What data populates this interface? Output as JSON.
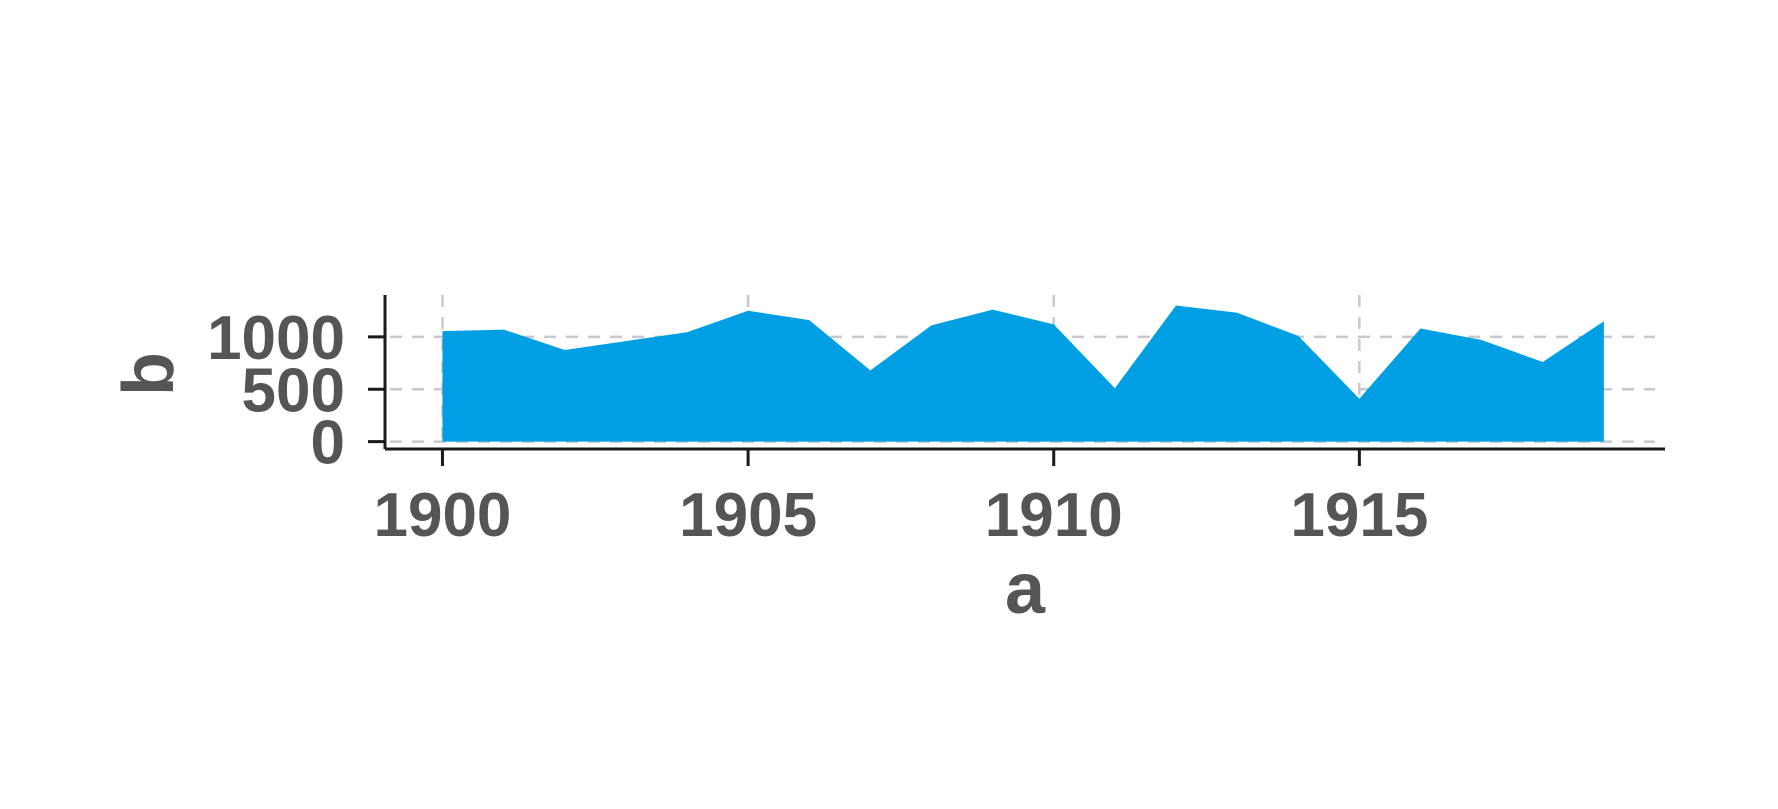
{
  "chart_data": {
    "type": "area",
    "xlabel": "a",
    "ylabel": "b",
    "x": [
      1900,
      1901,
      1902,
      1903,
      1904,
      1905,
      1906,
      1907,
      1908,
      1909,
      1910,
      1911,
      1912,
      1913,
      1914,
      1915,
      1916,
      1917,
      1918,
      1919
    ],
    "series": [
      {
        "values": [
          1055,
          1070,
          875,
          960,
          1045,
          1250,
          1160,
          680,
          1110,
          1260,
          1120,
          510,
          1300,
          1230,
          1010,
          410,
          1080,
          970,
          760,
          1150
        ],
        "color": "#009fe3"
      }
    ],
    "xticks": [
      1900,
      1905,
      1910,
      1915
    ],
    "yticks": [
      0,
      500,
      1000
    ],
    "xtick_labels": [
      "1900",
      "1905",
      "1910",
      "1915"
    ],
    "ytick_labels": [
      "0",
      "500",
      "1000"
    ],
    "xlim": [
      1899.06,
      1920.0
    ],
    "ylim": [
      -70,
      1400
    ],
    "grid": true,
    "grid_style": "dashed",
    "grid_color": "#c8c8d0",
    "axis_color": "#1a1a1a",
    "text_color": "#555555"
  }
}
